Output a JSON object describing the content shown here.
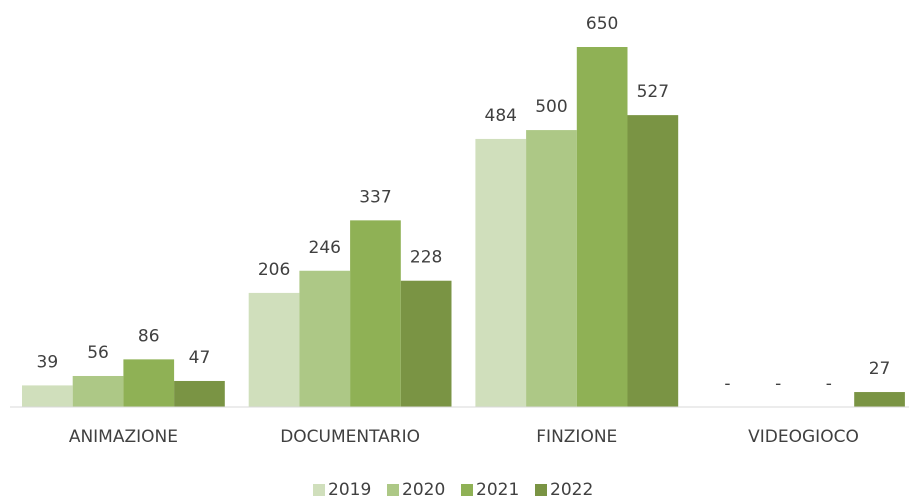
{
  "chart_data": {
    "type": "bar",
    "categories": [
      "ANIMAZIONE",
      "DOCUMENTARIO",
      "FINZIONE",
      "VIDEOGIOCO"
    ],
    "series": [
      {
        "name": "2019",
        "color": "#d0dfbc",
        "values": [
          39,
          206,
          484,
          null
        ],
        "value_labels": [
          "39",
          "206",
          "484",
          "-"
        ]
      },
      {
        "name": "2020",
        "color": "#adc886",
        "values": [
          56,
          246,
          500,
          null
        ],
        "value_labels": [
          "56",
          "246",
          "500",
          "-"
        ]
      },
      {
        "name": "2021",
        "color": "#8fb155",
        "values": [
          86,
          337,
          650,
          null
        ],
        "value_labels": [
          "86",
          "337",
          "650",
          "-"
        ]
      },
      {
        "name": "2022",
        "color": "#7a9444",
        "values": [
          47,
          228,
          527,
          27
        ],
        "value_labels": [
          "47",
          "228",
          "527",
          "27"
        ]
      }
    ],
    "legend": "bottom"
  }
}
